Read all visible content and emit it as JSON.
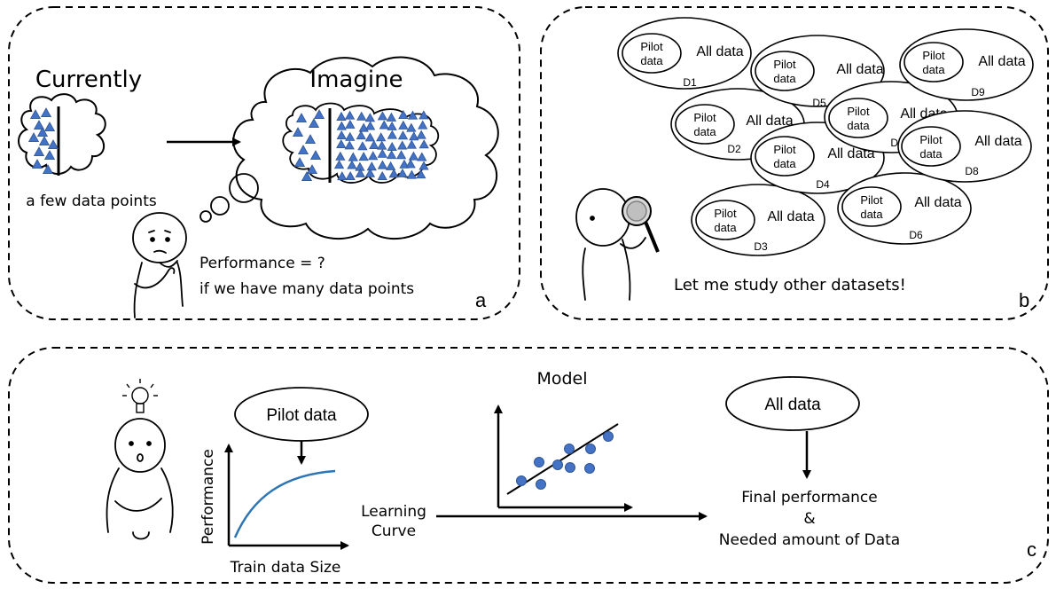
{
  "panel_a": {
    "currently_label": "Currently",
    "imagine_label": "Imagine",
    "few_points_label": "a few data points",
    "performance_line1": "Performance = ?",
    "performance_line2": "if we have many data points",
    "panel_letter": "a"
  },
  "panel_b": {
    "datasets": [
      {
        "id": "D1",
        "pilot_line1": "Pilot",
        "pilot_line2": "data",
        "all_label": "All data"
      },
      {
        "id": "D2",
        "pilot_line1": "Pilot",
        "pilot_line2": "data",
        "all_label": "All data"
      },
      {
        "id": "D3",
        "pilot_line1": "Pilot",
        "pilot_line2": "data",
        "all_label": "All data"
      },
      {
        "id": "D4",
        "pilot_line1": "Pilot",
        "pilot_line2": "data",
        "all_label": "All data"
      },
      {
        "id": "D5",
        "pilot_line1": "Pilot",
        "pilot_line2": "data",
        "all_label": "All data"
      },
      {
        "id": "D6",
        "pilot_line1": "Pilot",
        "pilot_line2": "data",
        "all_label": "All data"
      },
      {
        "id": "D7",
        "pilot_line1": "Pilot",
        "pilot_line2": "data",
        "all_label": "All data"
      },
      {
        "id": "D8",
        "pilot_line1": "Pilot",
        "pilot_line2": "data",
        "all_label": "All data"
      },
      {
        "id": "D9",
        "pilot_line1": "Pilot",
        "pilot_line2": "data",
        "all_label": "All data"
      }
    ],
    "study_label": "Let me study other datasets!",
    "panel_letter": "b"
  },
  "panel_c": {
    "pilot_data_label": "Pilot data",
    "performance_axis": "Performance",
    "train_size_axis": "Train data Size",
    "learning_curve_line1": "Learning",
    "learning_curve_line2": "Curve",
    "model_label": "Model",
    "all_data_label": "All data",
    "final_line1": "Final performance",
    "final_line2": "&",
    "final_line3": "Needed amount of Data",
    "panel_letter": "c"
  },
  "colors": {
    "point_fill": "#4472C4",
    "point_stroke": "#2F5597",
    "curve": "#2E75B6",
    "ink": "#000000"
  }
}
